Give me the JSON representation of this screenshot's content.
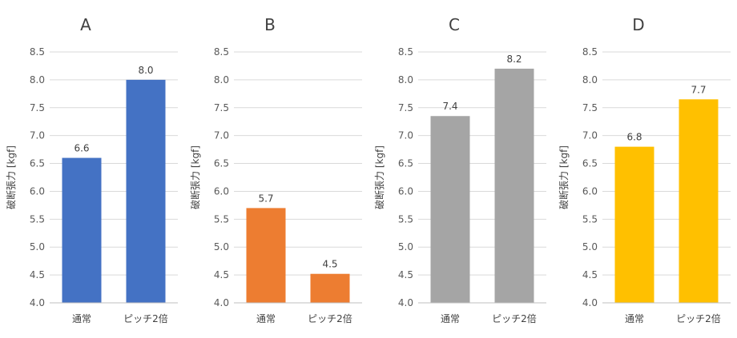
{
  "chart_data": [
    {
      "type": "bar",
      "title": "A",
      "ylabel": "破断張力 [kgf]",
      "categories": [
        "通常",
        "ピッチ2倍"
      ],
      "values": [
        6.6,
        8.0
      ],
      "value_labels": [
        "6.6",
        "8.0"
      ],
      "color": "#4472C4",
      "ylim": [
        4.0,
        8.5
      ],
      "yticks": [
        "4.0",
        "4.5",
        "5.0",
        "5.5",
        "6.0",
        "6.5",
        "7.0",
        "7.5",
        "8.0",
        "8.5"
      ],
      "grid": true,
      "legend": "none"
    },
    {
      "type": "bar",
      "title": "B",
      "ylabel": "破断張力 [kgf]",
      "categories": [
        "通常",
        "ピッチ2倍"
      ],
      "values": [
        5.7,
        4.52
      ],
      "value_labels": [
        "5.7",
        "4.5"
      ],
      "color": "#ED7D31",
      "ylim": [
        4.0,
        8.5
      ],
      "yticks": [
        "4.0",
        "4.5",
        "5.0",
        "5.5",
        "6.0",
        "6.5",
        "7.0",
        "7.5",
        "8.0",
        "8.5"
      ],
      "grid": true,
      "legend": "none"
    },
    {
      "type": "bar",
      "title": "C",
      "ylabel": "破断張力 [kgf]",
      "categories": [
        "通常",
        "ピッチ2倍"
      ],
      "values": [
        7.35,
        8.2
      ],
      "value_labels": [
        "7.4",
        "8.2"
      ],
      "color": "#A5A5A5",
      "ylim": [
        4.0,
        8.5
      ],
      "yticks": [
        "4.0",
        "4.5",
        "5.0",
        "5.5",
        "6.0",
        "6.5",
        "7.0",
        "7.5",
        "8.0",
        "8.5"
      ],
      "grid": true,
      "legend": "none"
    },
    {
      "type": "bar",
      "title": "D",
      "ylabel": "破断張力 [kgf]",
      "categories": [
        "通常",
        "ピッチ2倍"
      ],
      "values": [
        6.8,
        7.65
      ],
      "value_labels": [
        "6.8",
        "7.7"
      ],
      "color": "#FFC000",
      "ylim": [
        4.0,
        8.5
      ],
      "yticks": [
        "4.0",
        "4.5",
        "5.0",
        "5.5",
        "6.0",
        "6.5",
        "7.0",
        "7.5",
        "8.0",
        "8.5"
      ],
      "grid": true,
      "legend": "none"
    }
  ]
}
